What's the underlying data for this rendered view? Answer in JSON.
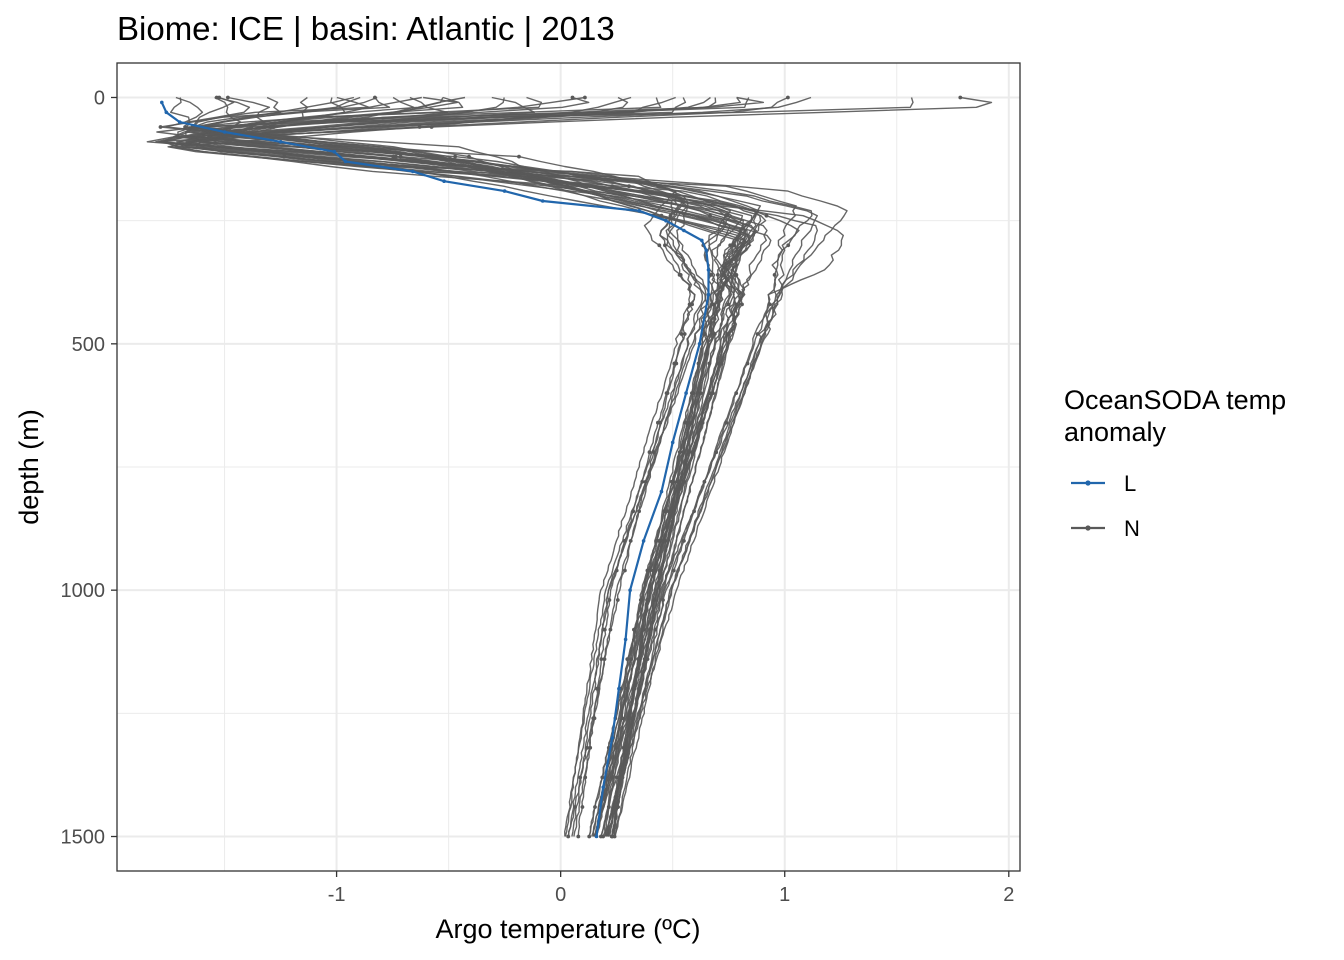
{
  "chart_data": {
    "type": "line",
    "title": "Biome: ICE | basin: Atlantic  |  2013",
    "xlabel": "Argo temperature (ºC)",
    "ylabel": "depth (m)",
    "xlim": [
      -1.98,
      2.05
    ],
    "ylim": [
      1570,
      -70
    ],
    "y_reversed": true,
    "x_ticks": [
      -1,
      0,
      1,
      2
    ],
    "x_tick_labels": [
      "-1",
      "0",
      "1",
      "2"
    ],
    "y_ticks": [
      0,
      500,
      1000,
      1500
    ],
    "y_tick_labels": [
      "0",
      "500",
      "1000",
      "1500"
    ],
    "grid": true,
    "legend": {
      "title_lines": [
        "OceanSODA temp",
        "anomaly"
      ],
      "position": "right",
      "entries": [
        {
          "label": "L",
          "color": "#2166ac"
        },
        {
          "label": "N",
          "color": "#595959"
        }
      ]
    },
    "series": [
      {
        "name": "L",
        "color": "#2166ac",
        "depth": [
          10,
          30,
          50,
          70,
          90,
          110,
          130,
          150,
          170,
          190,
          210,
          230,
          250,
          270,
          290,
          310,
          350,
          400,
          500,
          600,
          700,
          800,
          900,
          1000,
          1100,
          1200,
          1300,
          1400,
          1500
        ],
        "temp": [
          -1.78,
          -1.76,
          -1.7,
          -1.5,
          -1.25,
          -1.01,
          -0.96,
          -0.66,
          -0.52,
          -0.25,
          -0.08,
          0.35,
          0.47,
          0.55,
          0.63,
          0.65,
          0.66,
          0.66,
          0.62,
          0.56,
          0.5,
          0.45,
          0.37,
          0.31,
          0.29,
          0.26,
          0.23,
          0.19,
          0.16
        ]
      },
      {
        "name": "N",
        "color": "#595959",
        "n_profiles": 40
      }
    ]
  }
}
